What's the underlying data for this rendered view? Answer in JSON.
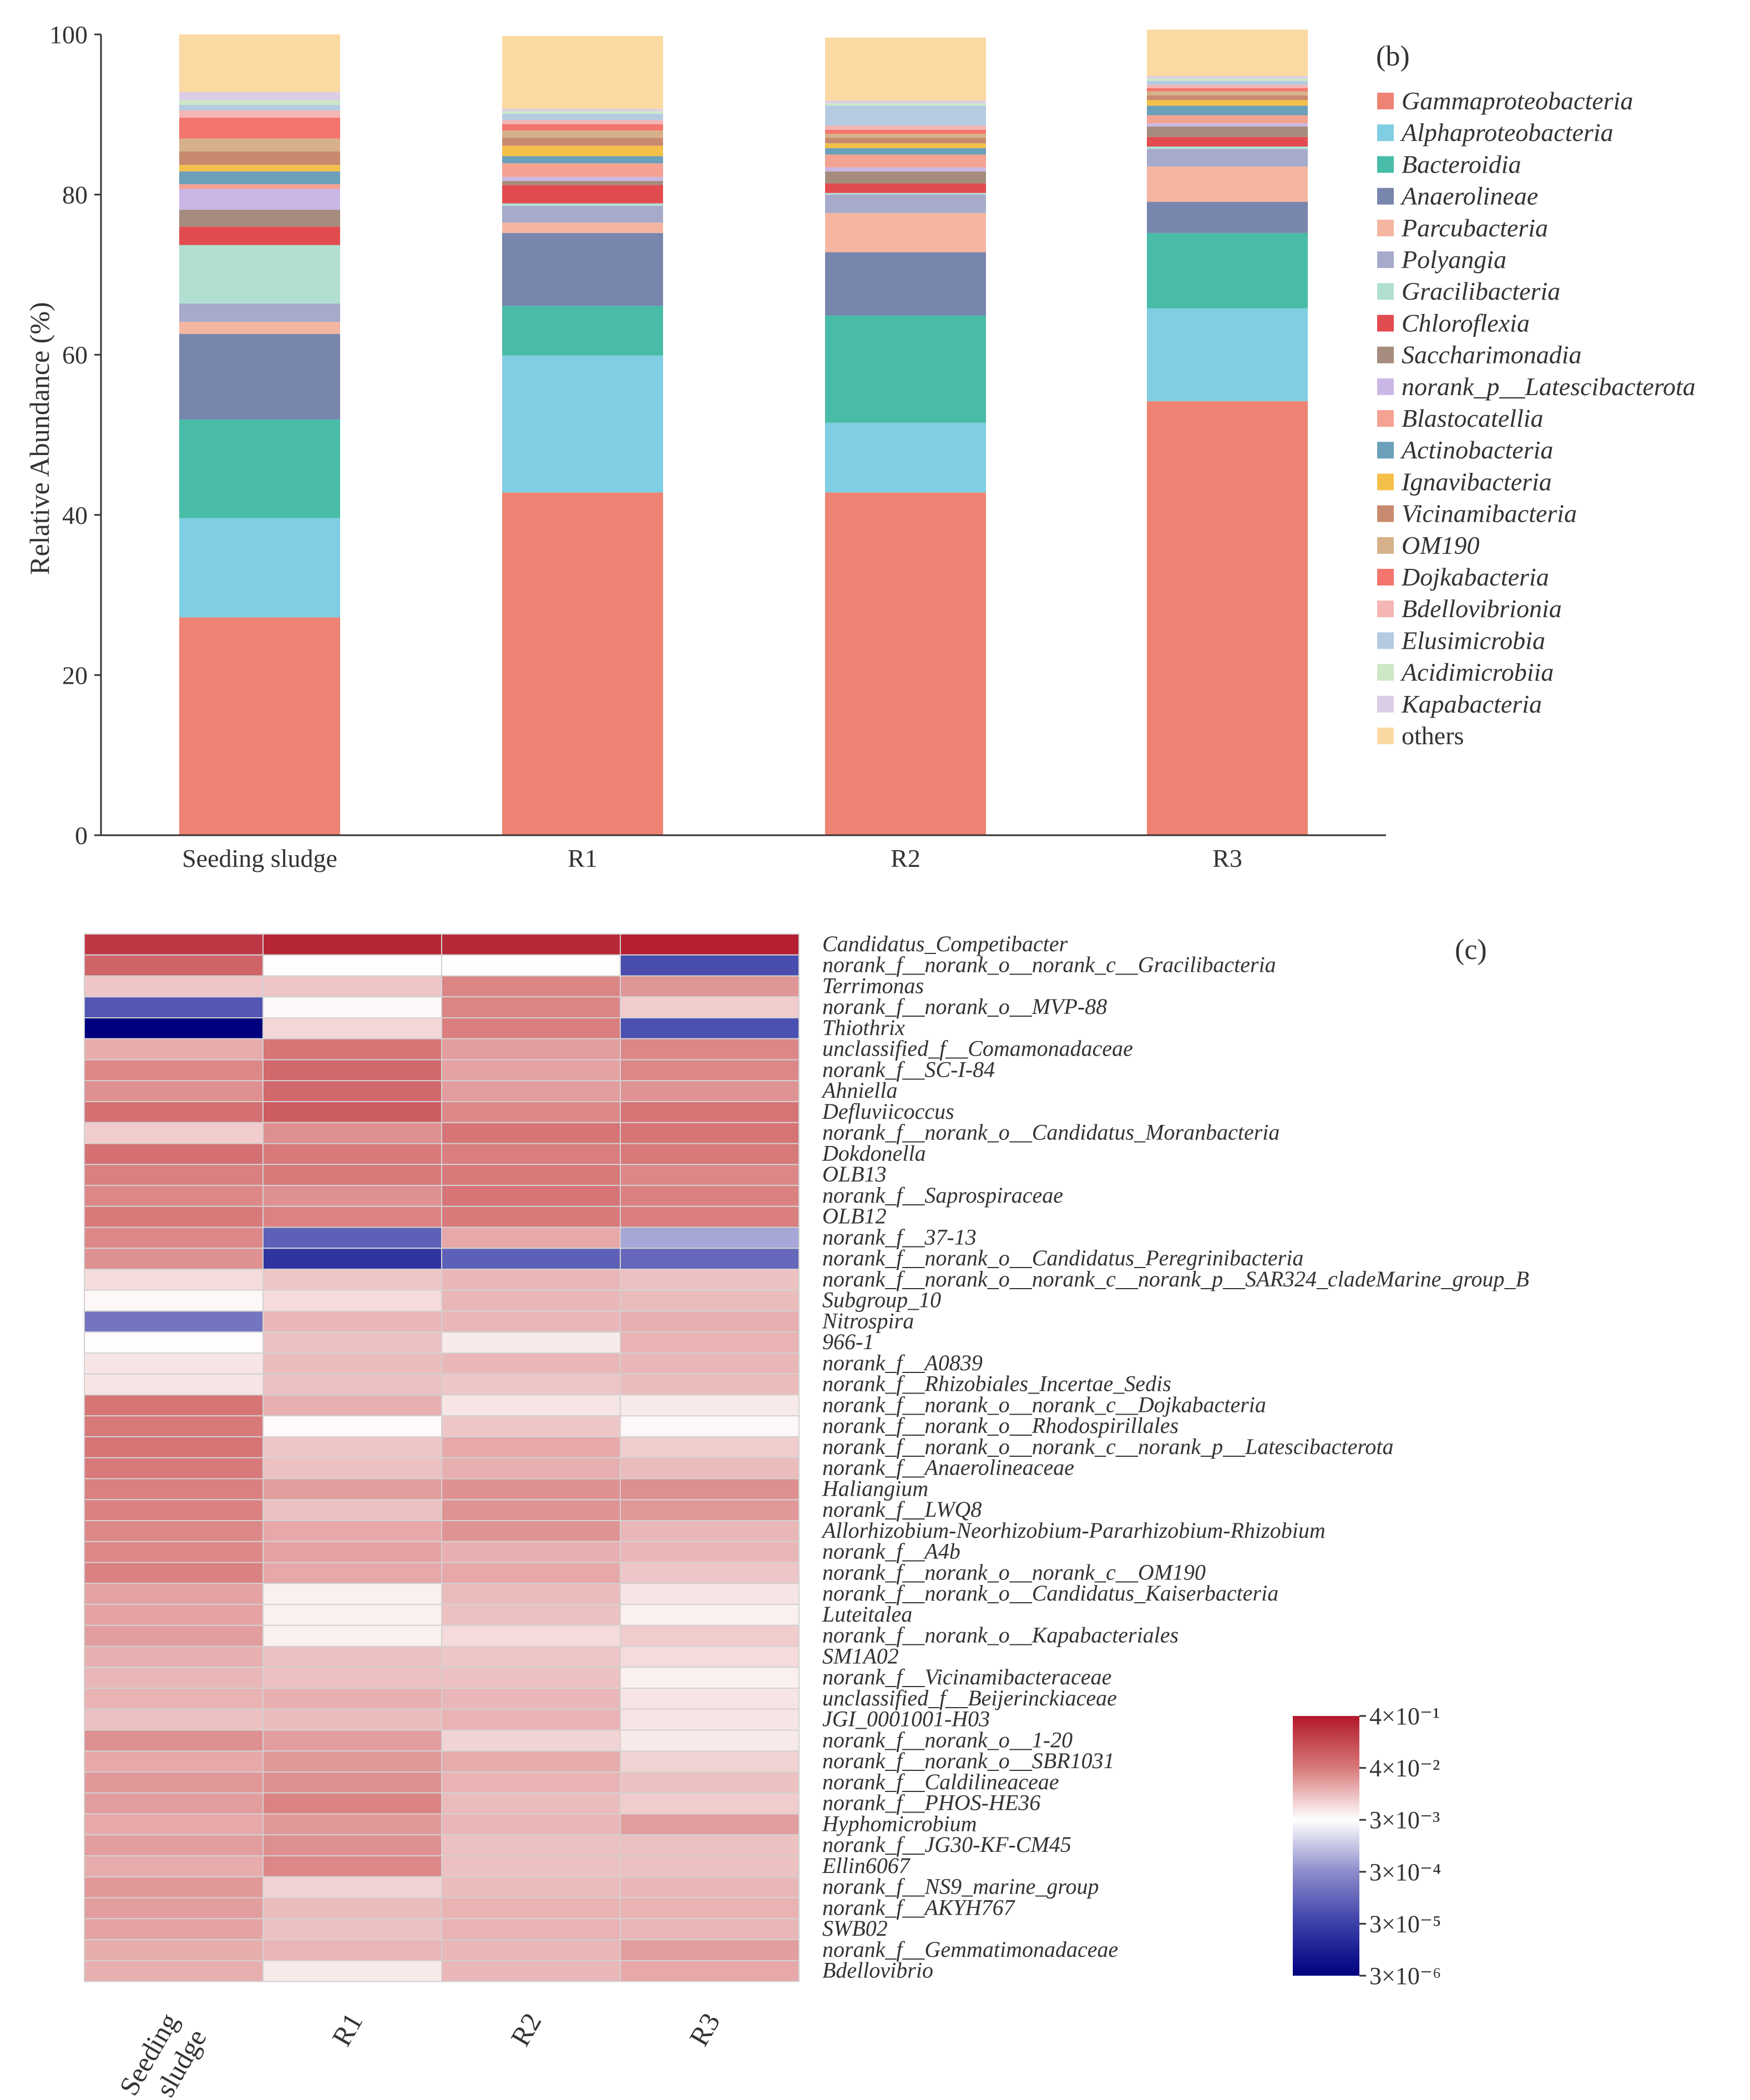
{
  "panel_b_label": "(b)",
  "panel_c_label": "(c)",
  "chart_data": [
    {
      "type": "bar",
      "stacked": true,
      "panel": "(b)",
      "ylabel": "Relative Abundance (%)",
      "ylim": [
        0,
        100
      ],
      "yticks": [
        0,
        20,
        40,
        60,
        80,
        100
      ],
      "categories": [
        "Seeding sludge",
        "R1",
        "R2",
        "R3"
      ],
      "legend_position": "right",
      "series": [
        {
          "name": "Gammaproteobacteria",
          "color": "#EE8373",
          "values": [
            27.2,
            42.8,
            42.8,
            54.2
          ]
        },
        {
          "name": "Alphaproteobacteria",
          "color": "#80CEE3",
          "values": [
            12.4,
            17.1,
            8.7,
            11.6
          ]
        },
        {
          "name": "Bacteroidia",
          "color": "#48BCA6",
          "values": [
            12.3,
            6.2,
            13.4,
            9.4
          ]
        },
        {
          "name": "Anaerolineae",
          "color": "#7886AD",
          "values": [
            10.7,
            9.1,
            7.9,
            3.9
          ]
        },
        {
          "name": "Parcubacteria",
          "color": "#F5B6A1",
          "values": [
            1.5,
            1.3,
            4.9,
            4.4
          ]
        },
        {
          "name": "Polyangia",
          "color": "#A6ABCC",
          "values": [
            2.3,
            2.1,
            2.3,
            2.2
          ]
        },
        {
          "name": "Gracilibacteria",
          "color": "#B1E0D2",
          "values": [
            7.3,
            0.3,
            0.2,
            0.3
          ]
        },
        {
          "name": "Chloroflexia",
          "color": "#E24B4F",
          "values": [
            2.3,
            2.3,
            1.2,
            1.2
          ]
        },
        {
          "name": "Saccharimonadia",
          "color": "#A58C7E",
          "values": [
            2.1,
            0.5,
            1.5,
            1.3
          ]
        },
        {
          "name": "norank_p__Latescibacterota",
          "color": "#CBB7E5",
          "values": [
            2.6,
            0.5,
            0.5,
            0.4
          ]
        },
        {
          "name": "Blastocatellia",
          "color": "#F4A292",
          "values": [
            0.6,
            1.7,
            1.6,
            1.0
          ]
        },
        {
          "name": "Actinobacteria",
          "color": "#6C9FB9",
          "values": [
            1.6,
            0.9,
            0.8,
            1.2
          ]
        },
        {
          "name": "Ignavibacteria",
          "color": "#F4C04A",
          "values": [
            0.8,
            1.3,
            0.6,
            0.7
          ]
        },
        {
          "name": "Vicinamibacteria",
          "color": "#C88A6E",
          "values": [
            1.7,
            1.0,
            0.7,
            0.6
          ]
        },
        {
          "name": "OM190",
          "color": "#D6B18A",
          "values": [
            1.6,
            0.9,
            0.5,
            0.5
          ]
        },
        {
          "name": "Dojkabacteria",
          "color": "#F3756C",
          "values": [
            2.6,
            0.8,
            0.5,
            0.4
          ]
        },
        {
          "name": "Bdellovibrionia",
          "color": "#F3B6B4",
          "values": [
            0.9,
            0.5,
            0.5,
            0.4
          ]
        },
        {
          "name": "Elusimicrobia",
          "color": "#B5CBE1",
          "values": [
            0.7,
            0.8,
            2.5,
            0.5
          ]
        },
        {
          "name": "Acidimicrobiia",
          "color": "#CDE7C7",
          "values": [
            0.6,
            0.3,
            0.3,
            0.3
          ]
        },
        {
          "name": "Kapabacteria",
          "color": "#DCCDE6",
          "values": [
            1.0,
            0.3,
            0.3,
            0.3
          ]
        },
        {
          "name": "others",
          "color": "#FBD9A3",
          "values": [
            7.2,
            9.1,
            7.9,
            5.8
          ]
        }
      ]
    },
    {
      "type": "heatmap",
      "panel": "(c)",
      "columns": [
        "Seeding sludge",
        "R1",
        "R2",
        "R3"
      ],
      "colorbar_ticks": [
        "4×10⁻¹",
        "4×10⁻²",
        "3×10⁻³",
        "3×10⁻⁴",
        "3×10⁻⁵",
        "3×10⁻⁶"
      ],
      "colorbar_colors": [
        "#B2182B",
        "#D8797A",
        "#FFFFFF",
        "#8C8CCB",
        "#3A3FA8",
        "#00007F"
      ],
      "color_scale_note": "relative abundance, log scale",
      "rows": [
        {
          "name": "Candidatus_Competibacter",
          "values": [
            0.19,
            0.29,
            0.27,
            0.34
          ]
        },
        {
          "name": "norank_f__norank_o__norank_c__Gracilibacteria",
          "values": [
            0.067,
            0.0032,
            0.0031,
            4.5e-05
          ]
        },
        {
          "name": "Terrimonas",
          "values": [
            0.009,
            0.009,
            0.032,
            0.023
          ]
        },
        {
          "name": "norank_f__norank_o__MVP-88",
          "values": [
            6e-05,
            0.0034,
            0.032,
            0.008
          ]
        },
        {
          "name": "Thiothrix",
          "values": [
            3e-06,
            0.0065,
            0.036,
            5e-05
          ]
        },
        {
          "name": "unclassified_f__Comamonadaceae",
          "values": [
            0.015,
            0.045,
            0.02,
            0.03
          ]
        },
        {
          "name": "norank_f__SC-I-84",
          "values": [
            0.03,
            0.06,
            0.018,
            0.03
          ]
        },
        {
          "name": "Ahniella",
          "values": [
            0.025,
            0.06,
            0.02,
            0.024
          ]
        },
        {
          "name": "Defluviicoccus",
          "values": [
            0.05,
            0.08,
            0.03,
            0.045
          ]
        },
        {
          "name": "norank_f__norank_o__Candidatus_Moranbacteria",
          "values": [
            0.008,
            0.026,
            0.045,
            0.045
          ]
        },
        {
          "name": "Dokdonella",
          "values": [
            0.05,
            0.04,
            0.036,
            0.04
          ]
        },
        {
          "name": "OLB13",
          "values": [
            0.035,
            0.04,
            0.04,
            0.03
          ]
        },
        {
          "name": "norank_f__Saprospiraceae",
          "values": [
            0.03,
            0.025,
            0.045,
            0.034
          ]
        },
        {
          "name": "OLB12",
          "values": [
            0.04,
            0.033,
            0.04,
            0.036
          ]
        },
        {
          "name": "norank_f__37-13",
          "values": [
            0.03,
            8e-05,
            0.016,
            0.0005
          ]
        },
        {
          "name": "norank_f__norank_o__Candidatus_Peregrinibacteria",
          "values": [
            0.025,
            2e-05,
            8e-05,
            0.0001
          ]
        },
        {
          "name": "norank_f__norank_o__norank_c__norank_p__SAR324_cladeMarine_group_B",
          "values": [
            0.006,
            0.009,
            0.012,
            0.01
          ]
        },
        {
          "name": "Subgroup_10",
          "values": [
            0.0035,
            0.006,
            0.012,
            0.011
          ]
        },
        {
          "name": "Nitrospira",
          "values": [
            0.00015,
            0.012,
            0.012,
            0.014
          ]
        },
        {
          "name": "966-1",
          "values": [
            0.0032,
            0.01,
            0.0045,
            0.013
          ]
        },
        {
          "name": "norank_f__A0839",
          "values": [
            0.005,
            0.011,
            0.012,
            0.012
          ]
        },
        {
          "name": "norank_f__Rhizobiales_Incertae_Sedis",
          "values": [
            0.005,
            0.01,
            0.009,
            0.011
          ]
        },
        {
          "name": "norank_f__norank_o__norank_c__Dojkabacteria",
          "values": [
            0.045,
            0.014,
            0.005,
            0.0045
          ]
        },
        {
          "name": "norank_f__norank_o__Rhodospirillales",
          "values": [
            0.04,
            0.0033,
            0.009,
            0.0035
          ]
        },
        {
          "name": "norank_f__norank_o__norank_c__norank_p__Latescibacterota",
          "values": [
            0.045,
            0.009,
            0.016,
            0.008
          ]
        },
        {
          "name": "norank_f__Anaerolineaceae",
          "values": [
            0.04,
            0.01,
            0.014,
            0.011
          ]
        },
        {
          "name": "Haliangium",
          "values": [
            0.035,
            0.02,
            0.025,
            0.026
          ]
        },
        {
          "name": "norank_f__LWQ8",
          "values": [
            0.035,
            0.01,
            0.024,
            0.022
          ]
        },
        {
          "name": "Allorhizobium-Neorhizobium-Pararhizobium-Rhizobium",
          "values": [
            0.03,
            0.016,
            0.024,
            0.012
          ]
        },
        {
          "name": "norank_f__A4b",
          "values": [
            0.03,
            0.018,
            0.014,
            0.012
          ]
        },
        {
          "name": "norank_f__norank_o__norank_c__OM190",
          "values": [
            0.034,
            0.016,
            0.016,
            0.009
          ]
        },
        {
          "name": "norank_f__norank_o__Candidatus_Kaiserbacteria",
          "values": [
            0.018,
            0.004,
            0.011,
            0.005
          ]
        },
        {
          "name": "Luteitalea",
          "values": [
            0.018,
            0.004,
            0.01,
            0.004
          ]
        },
        {
          "name": "norank_f__norank_o__Kapabacteriales",
          "values": [
            0.02,
            0.004,
            0.006,
            0.008
          ]
        },
        {
          "name": "SM1A02",
          "values": [
            0.014,
            0.01,
            0.009,
            0.006
          ]
        },
        {
          "name": "norank_f__Vicinamibacteraceae",
          "values": [
            0.012,
            0.01,
            0.01,
            0.004
          ]
        },
        {
          "name": "unclassified_f__Beijerinckiaceae",
          "values": [
            0.013,
            0.014,
            0.012,
            0.005
          ]
        },
        {
          "name": "JGI_0001001-H03",
          "values": [
            0.01,
            0.011,
            0.013,
            0.005
          ]
        },
        {
          "name": "norank_f__norank_o__1-20",
          "values": [
            0.026,
            0.02,
            0.007,
            0.0045
          ]
        },
        {
          "name": "norank_f__norank_o__SBR1031",
          "values": [
            0.016,
            0.022,
            0.015,
            0.007
          ]
        },
        {
          "name": "norank_f__Caldilineaceae",
          "values": [
            0.022,
            0.025,
            0.013,
            0.01
          ]
        },
        {
          "name": "norank_f__PHOS-HE36",
          "values": [
            0.02,
            0.033,
            0.011,
            0.008
          ]
        },
        {
          "name": "Hyphomicrobium",
          "values": [
            0.016,
            0.022,
            0.012,
            0.02
          ]
        },
        {
          "name": "norank_f__JG30-KF-CM45",
          "values": [
            0.02,
            0.026,
            0.01,
            0.01
          ]
        },
        {
          "name": "Ellin6067",
          "values": [
            0.015,
            0.03,
            0.01,
            0.01
          ]
        },
        {
          "name": "norank_f__NS9_marine_group",
          "values": [
            0.022,
            0.007,
            0.011,
            0.012
          ]
        },
        {
          "name": "norank_f__AKYH767",
          "values": [
            0.02,
            0.011,
            0.013,
            0.013
          ]
        },
        {
          "name": "SWB02",
          "values": [
            0.018,
            0.01,
            0.013,
            0.012
          ]
        },
        {
          "name": "norank_f__Gemmatimonadaceae",
          "values": [
            0.015,
            0.012,
            0.012,
            0.02
          ]
        },
        {
          "name": "Bdellovibrio",
          "values": [
            0.014,
            0.0045,
            0.012,
            0.016
          ]
        }
      ]
    }
  ]
}
